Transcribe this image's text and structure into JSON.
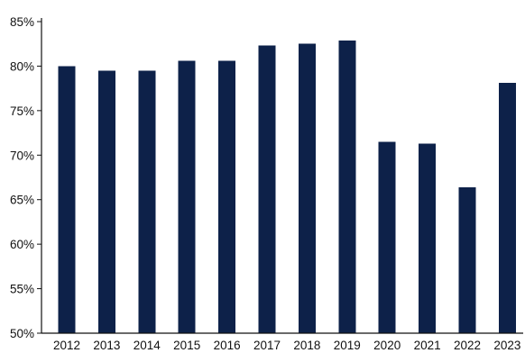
{
  "chart_data": {
    "type": "bar",
    "categories": [
      "2012",
      "2013",
      "2014",
      "2015",
      "2016",
      "2017",
      "2018",
      "2019",
      "2020",
      "2021",
      "2022",
      "2023"
    ],
    "values": [
      80.0,
      79.5,
      79.5,
      80.6,
      80.6,
      82.3,
      82.5,
      82.9,
      71.5,
      71.3,
      66.4,
      78.1
    ],
    "ylim": [
      50,
      85
    ],
    "yticks": [
      50,
      55,
      60,
      65,
      70,
      75,
      80,
      85
    ],
    "ytick_labels": [
      "50%",
      "55%",
      "60%",
      "65%",
      "70%",
      "75%",
      "80%",
      "85%"
    ],
    "title": "",
    "xlabel": "",
    "ylabel": "",
    "grid": false,
    "bar_color": "#0d2149",
    "axis_color": "#111111"
  }
}
